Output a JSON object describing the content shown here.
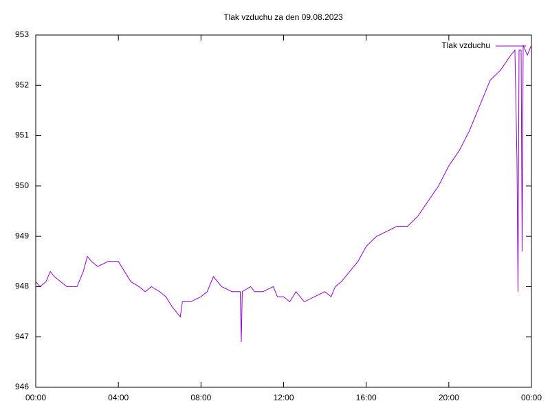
{
  "chart_data": {
    "type": "line",
    "title": "Tlak vzduchu za den 09.08.2023",
    "x": [
      0,
      0.2,
      0.5,
      0.7,
      0.9,
      1.2,
      1.5,
      2.0,
      2.3,
      2.5,
      2.7,
      3.0,
      3.5,
      4.0,
      4.3,
      4.6,
      5.0,
      5.3,
      5.6,
      6.0,
      6.3,
      6.6,
      7.0,
      7.1,
      7.5,
      8.0,
      8.3,
      8.6,
      9.0,
      9.5,
      9.9,
      9.95,
      10.0,
      10.4,
      10.6,
      11.0,
      11.5,
      11.7,
      12.0,
      12.3,
      12.6,
      13.0,
      13.5,
      14.0,
      14.3,
      14.5,
      14.8,
      15.2,
      15.6,
      16.0,
      16.5,
      17.0,
      17.5,
      18.0,
      18.5,
      19.0,
      19.5,
      20.0,
      20.5,
      21.0,
      21.5,
      22.0,
      22.5,
      23.0,
      23.2,
      23.3,
      23.35,
      23.4,
      23.5,
      23.55,
      23.6,
      23.8,
      24.0
    ],
    "series": [
      {
        "name": "Tlak vzduchu",
        "color": "#9400d3",
        "values": [
          948.1,
          948.0,
          948.1,
          948.3,
          948.2,
          948.1,
          948.0,
          948.0,
          948.3,
          948.6,
          948.5,
          948.4,
          948.5,
          948.5,
          948.3,
          948.1,
          948.0,
          947.9,
          948.0,
          947.9,
          947.8,
          947.6,
          947.4,
          947.7,
          947.7,
          947.8,
          947.9,
          948.2,
          948.0,
          947.9,
          947.9,
          946.9,
          947.9,
          948.0,
          947.9,
          947.9,
          948.0,
          947.8,
          947.8,
          947.7,
          947.9,
          947.7,
          947.8,
          947.9,
          947.8,
          948.0,
          948.1,
          948.3,
          948.5,
          948.8,
          949.0,
          949.1,
          949.2,
          949.2,
          949.4,
          949.7,
          950.0,
          950.4,
          950.7,
          951.1,
          951.6,
          952.1,
          952.3,
          952.6,
          952.7,
          950.5,
          947.9,
          952.7,
          952.7,
          948.7,
          952.8,
          952.6,
          952.8
        ]
      }
    ],
    "xlim": [
      0,
      24
    ],
    "xticks": [
      {
        "value": 0,
        "label": "00:00"
      },
      {
        "value": 4,
        "label": "04:00"
      },
      {
        "value": 8,
        "label": "08:00"
      },
      {
        "value": 12,
        "label": "12:00"
      },
      {
        "value": 16,
        "label": "16:00"
      },
      {
        "value": 20,
        "label": "20:00"
      },
      {
        "value": 24,
        "label": "00:00"
      }
    ],
    "ylim": [
      946,
      953
    ],
    "yticks": [
      946,
      947,
      948,
      949,
      950,
      951,
      952,
      953
    ],
    "grid": false,
    "legend": "top-right"
  }
}
